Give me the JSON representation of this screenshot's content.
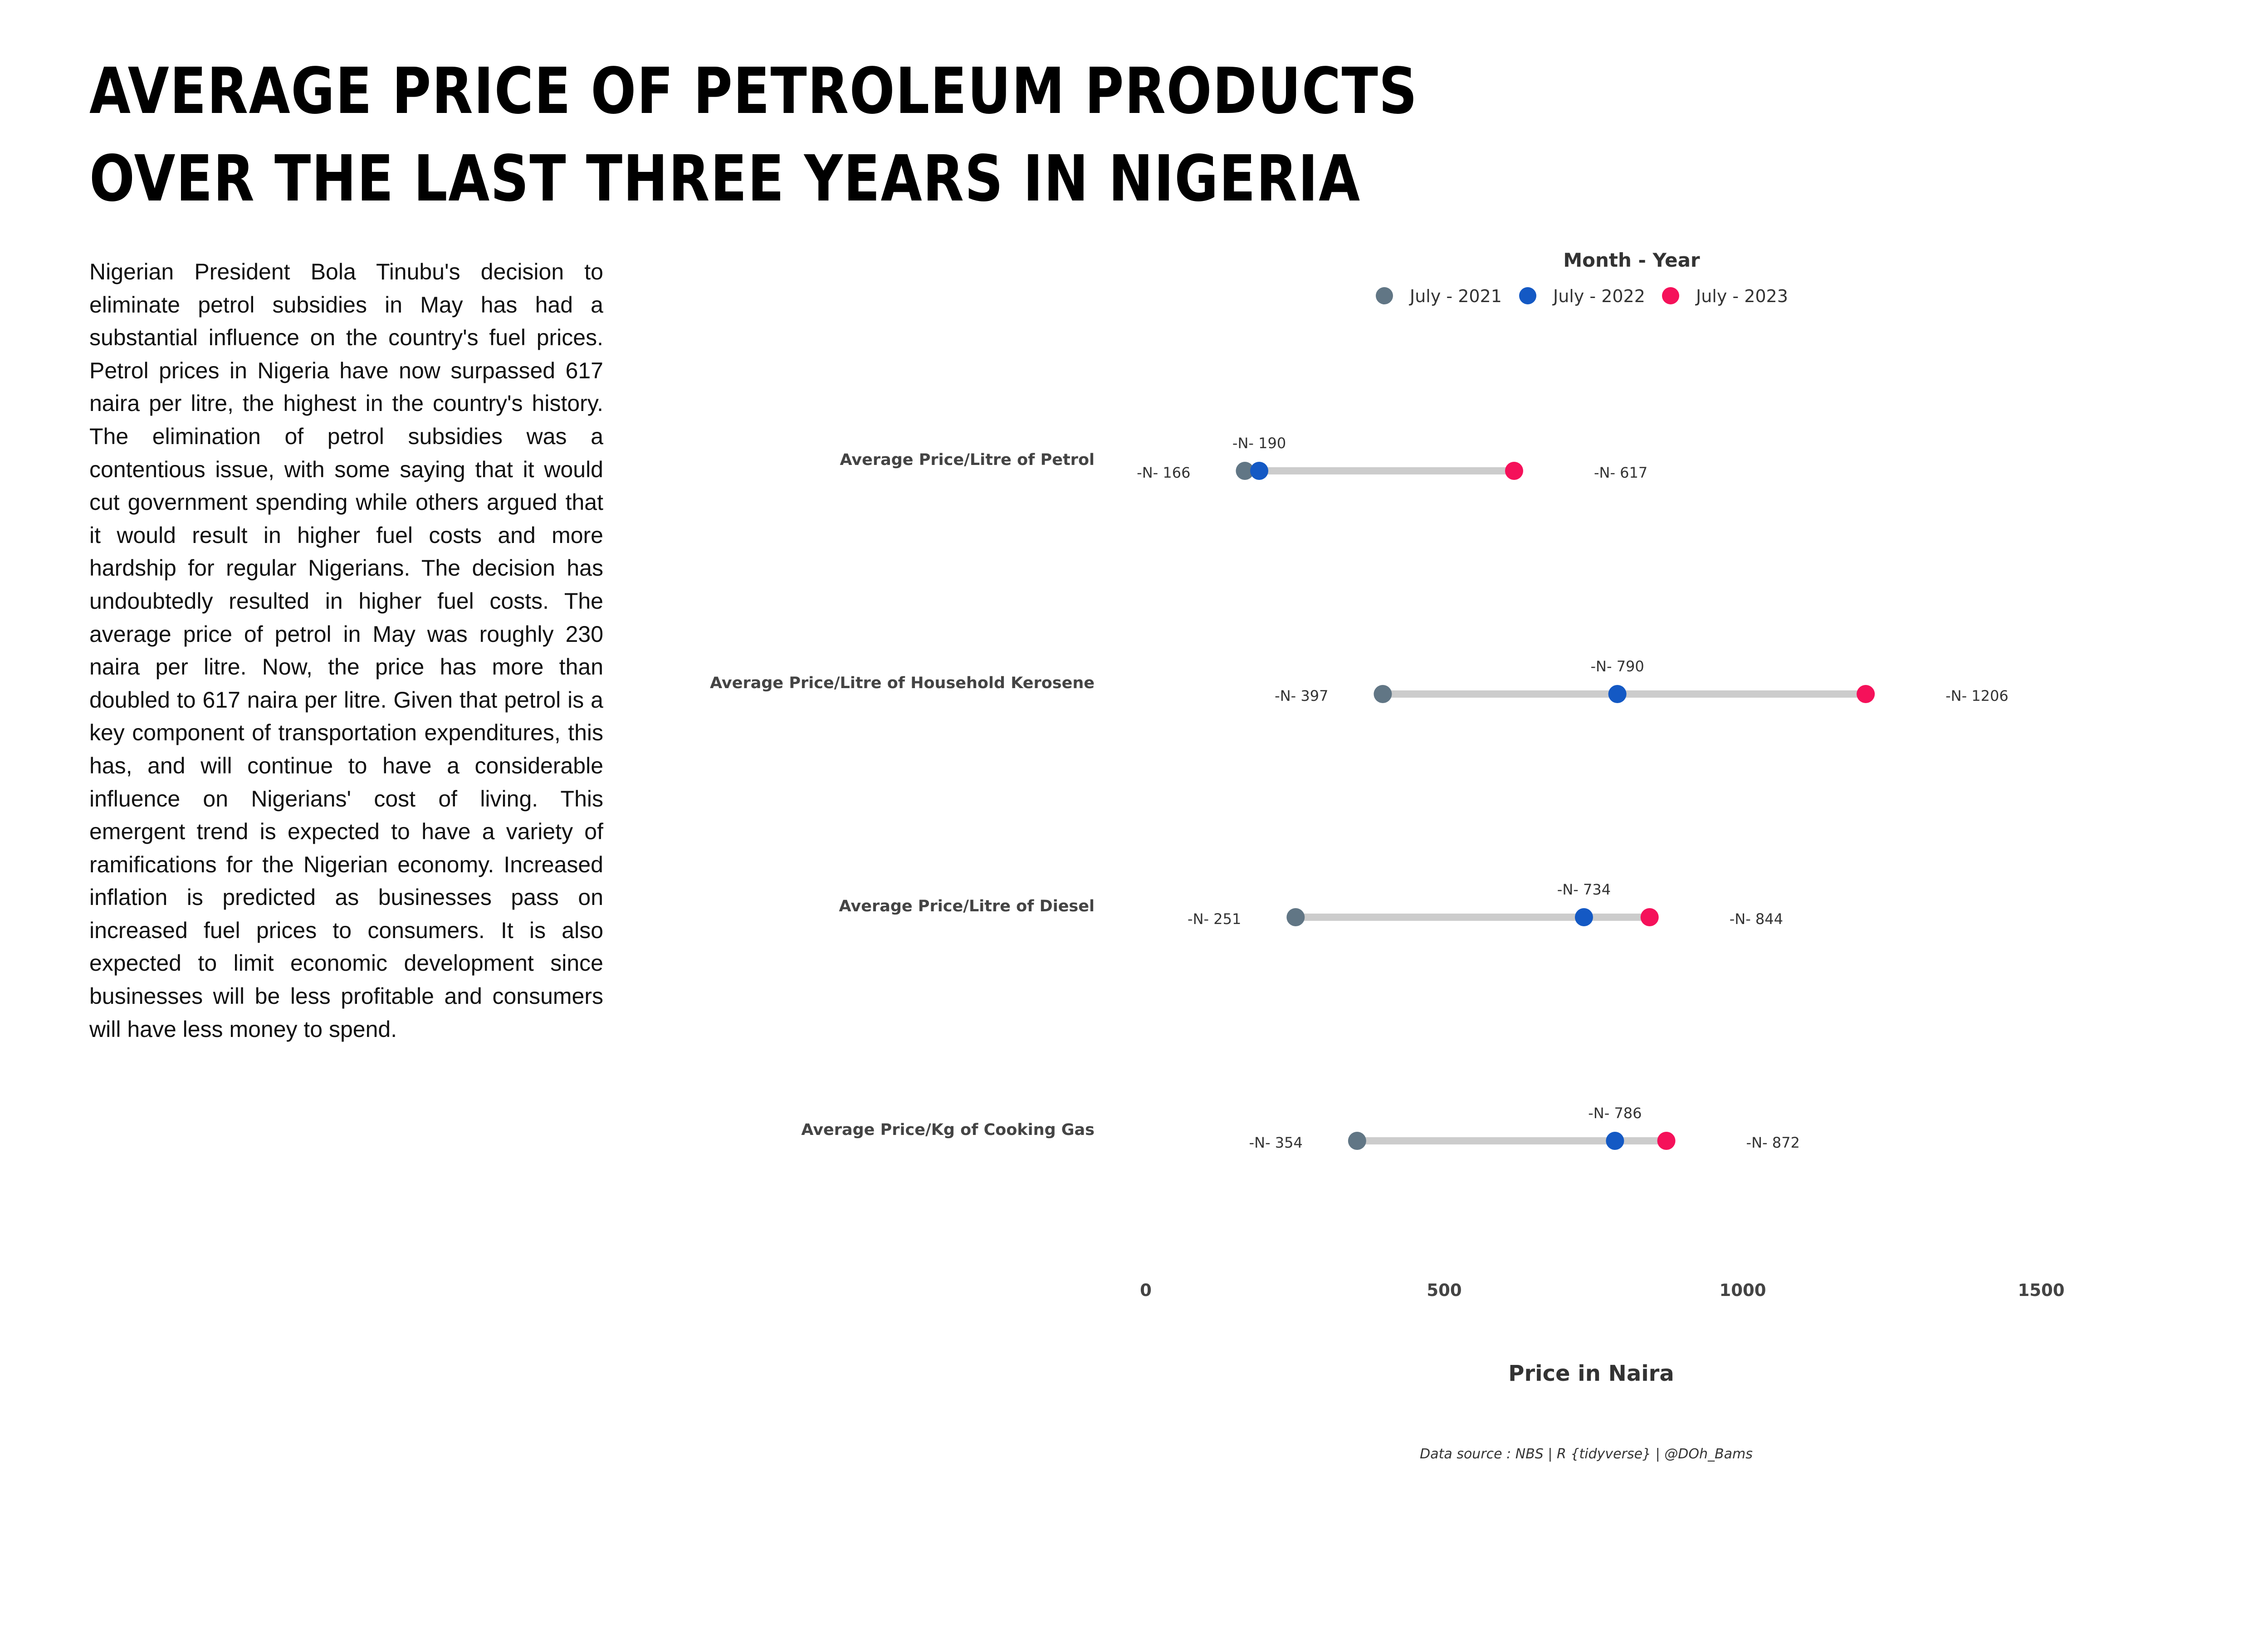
{
  "title_lines": [
    "AVERAGE PRICE OF PETROLEUM PRODUCTS",
    "OVER THE LAST THREE YEARS IN NIGERIA"
  ],
  "intro_text": "Nigerian President Bola Tinubu's decision to eliminate petrol subsidies in May has had a substantial influence on the country's fuel prices. Petrol prices in Nigeria have now surpassed 617 naira per litre, the highest in the country's history. The elimination of petrol subsidies was a contentious issue, with some saying that it would cut government spending while others argued that it would result in higher fuel costs and more hardship for regular Nigerians. The decision has undoubtedly resulted in higher fuel costs. The average price of petrol in May was roughly 230 naira per litre. Now, the price has more than doubled to 617 naira per litre. Given that petrol is a key component of transportation expenditures, this has, and will continue to have a considerable influence on Nigerians' cost of living. This emergent trend is expected to have a variety of ramifications for the Nigerian economy. Increased inflation is predicted as businesses pass on increased fuel prices to consumers. It is also expected to limit economic development since businesses will be less profitable and consumers will have less money to spend.",
  "chart_data": {
    "type": "dumbbell",
    "categories": [
      "Average Price/Litre of Petrol",
      "Average Price/Litre of Household Kerosene",
      "Average Price/Litre of Diesel",
      "Average Price/Kg of Cooking Gas"
    ],
    "series": [
      {
        "name": "July - 2021",
        "color": "#617685",
        "values": [
          166,
          397,
          251,
          354
        ]
      },
      {
        "name": "July - 2022",
        "color": "#1459c4",
        "values": [
          190,
          790,
          734,
          786
        ]
      },
      {
        "name": "July - 2023",
        "color": "#f5115a",
        "values": [
          617,
          1206,
          844,
          872
        ]
      }
    ],
    "value_prefix": "-N- ",
    "legend_title": "Month - Year",
    "legend_position": "top",
    "xlabel": "Price in Naira",
    "xticks": [
      0,
      500,
      1000,
      1500
    ],
    "xlim": [
      0,
      1500
    ],
    "grid": false,
    "connector_color": "#cccccc"
  },
  "caption": "Data source : NBS | R {tidyverse} | @DOh_Bams"
}
